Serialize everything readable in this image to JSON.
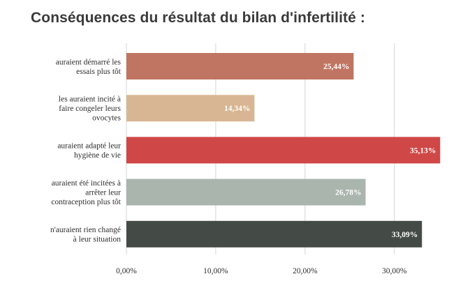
{
  "chart_data": {
    "type": "bar",
    "orientation": "horizontal",
    "title": "Conséquences du résultat du bilan d'infertilité :",
    "xlabel": "",
    "ylabel": "",
    "xlim": [
      0,
      36
    ],
    "grid": true,
    "legend": "none",
    "categories": [
      [
        "auraient démarré les",
        "essais plus tôt"
      ],
      [
        "les auraient incité à",
        "faire congeler leurs",
        "ovocytes"
      ],
      [
        "auraient adapté leur",
        "hygiène de vie"
      ],
      [
        "auraient été incitées à",
        "arrêter leur",
        "contraception plus tôt"
      ],
      [
        "n'auraient rien changé",
        "à leur situation"
      ]
    ],
    "values": [
      25.44,
      14.34,
      35.13,
      26.78,
      33.09
    ],
    "data_labels": [
      "25,44%",
      "14,34%",
      "35,13%",
      "26,78%",
      "33,09%"
    ],
    "colors": [
      "#c07562",
      "#d8b693",
      "#cf4746",
      "#a9b5ad",
      "#444b47"
    ],
    "ticks": [
      0,
      10,
      20,
      30
    ],
    "tick_labels": [
      "0,00%",
      "10,00%",
      "20,00%",
      "30,00%"
    ]
  }
}
